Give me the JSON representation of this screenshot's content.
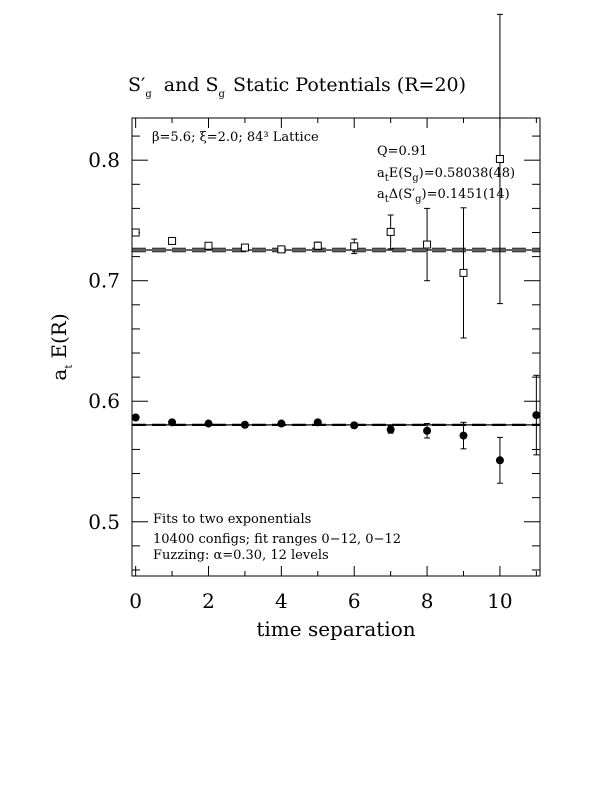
{
  "chart_data": {
    "type": "scatter",
    "title": "S′g and Sg Static Potentials (R=20)",
    "xlabel": "time separation",
    "ylabel": "at E(R)",
    "xlim": [
      -0.1,
      11.1
    ],
    "ylim": [
      0.455,
      0.835
    ],
    "x_ticks": [
      0,
      2,
      4,
      6,
      8,
      10
    ],
    "x_tick_labels": [
      "0",
      "2",
      "4",
      "6",
      "8",
      "10"
    ],
    "y_ticks": [
      0.5,
      0.6,
      0.7,
      0.8
    ],
    "y_tick_labels": [
      "0.5",
      "0.6",
      "0.7",
      "0.8"
    ],
    "grid": false,
    "legend": "none",
    "annotations_top_left": "β=5.6; ξ=2.0; 84³ Lattice",
    "annotations_top_right": {
      "q": "Q=0.91",
      "energy": "atE(Sg)=0.58038(48)",
      "gap": "atΔ(S′g)=0.1451(14)"
    },
    "annotations_bottom_left": [
      "Fits to two exponentials",
      "10400 configs; fit ranges 0−12, 0−12",
      "Fuzzing: α=0.30, 12 levels"
    ],
    "fit_lines": {
      "ground_state": {
        "value": 0.58038,
        "error": 0.00048
      },
      "excited_state": {
        "value": 0.72548,
        "error": 0.0015
      }
    },
    "series": [
      {
        "marker": "filled-circle",
        "x": [
          0,
          1,
          2,
          3,
          4,
          5,
          6,
          7,
          8,
          9,
          10,
          11
        ],
        "y": [
          0.5865,
          0.5825,
          0.5815,
          0.5805,
          0.5815,
          0.5825,
          0.58,
          0.5765,
          0.5755,
          0.5715,
          0.551,
          0.5885
        ],
        "err": [
          0.001,
          0.001,
          0.001,
          0.001,
          0.001,
          0.0015,
          0.002,
          0.003,
          0.006,
          0.011,
          0.019,
          0.033
        ]
      },
      {
        "marker": "open-square",
        "x": [
          0,
          1,
          2,
          3,
          4,
          5,
          6,
          7,
          8,
          9,
          10
        ],
        "y": [
          0.74,
          0.733,
          0.729,
          0.7275,
          0.726,
          0.729,
          0.7285,
          0.7405,
          0.73,
          0.7065,
          0.801
        ],
        "err": [
          0.001,
          0.001,
          0.0015,
          0.002,
          0.002,
          0.003,
          0.006,
          0.014,
          0.03,
          0.054,
          0.12
        ]
      }
    ]
  }
}
